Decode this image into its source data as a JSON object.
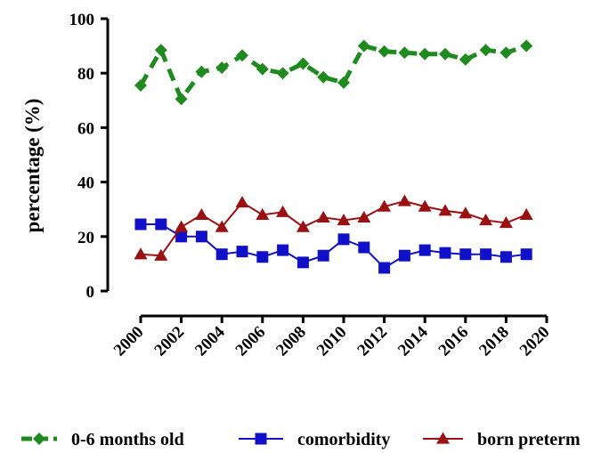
{
  "chart_data": {
    "type": "line",
    "title": "",
    "xlabel": "",
    "ylabel": "percentage (%)",
    "xlim": [
      2000,
      2020
    ],
    "ylim": [
      0,
      100
    ],
    "xticks": [
      "2000",
      "2002",
      "2004",
      "2006",
      "2008",
      "2010",
      "2012",
      "2014",
      "2016",
      "2018",
      "2020"
    ],
    "yticks": [
      "0",
      "20",
      "40",
      "60",
      "80",
      "100"
    ],
    "grid": false,
    "legend_position": "bottom",
    "x": [
      2000,
      2001,
      2002,
      2003,
      2004,
      2005,
      2006,
      2007,
      2008,
      2009,
      2010,
      2011,
      2012,
      2013,
      2014,
      2015,
      2016,
      2017,
      2018,
      2019
    ],
    "series": [
      {
        "name": "0-6 months old",
        "color": "#1f8b1f",
        "marker": "diamond",
        "line_style": "dashed",
        "values": [
          75.5,
          88.5,
          70.5,
          80.5,
          82,
          86.5,
          81.5,
          80,
          83.5,
          78.5,
          76.5,
          90,
          88,
          87.5,
          87,
          87,
          85,
          88.5,
          87.5,
          90
        ]
      },
      {
        "name": "comorbidity",
        "color": "#1010c8",
        "marker": "square",
        "line_style": "solid",
        "values": [
          24.5,
          24.5,
          20,
          20,
          13.5,
          14.5,
          12.5,
          15,
          10.5,
          13,
          19,
          16,
          8.5,
          13,
          15,
          14,
          13.5,
          13.5,
          12.5,
          13.5
        ]
      },
      {
        "name": "born preterm",
        "color": "#9b1111",
        "marker": "triangle",
        "line_style": "solid",
        "values": [
          13.5,
          13,
          23.5,
          28,
          23.5,
          32.5,
          28,
          29,
          23.5,
          27,
          26,
          27,
          31,
          33,
          31,
          29.5,
          28.5,
          26,
          25,
          28
        ]
      }
    ]
  }
}
